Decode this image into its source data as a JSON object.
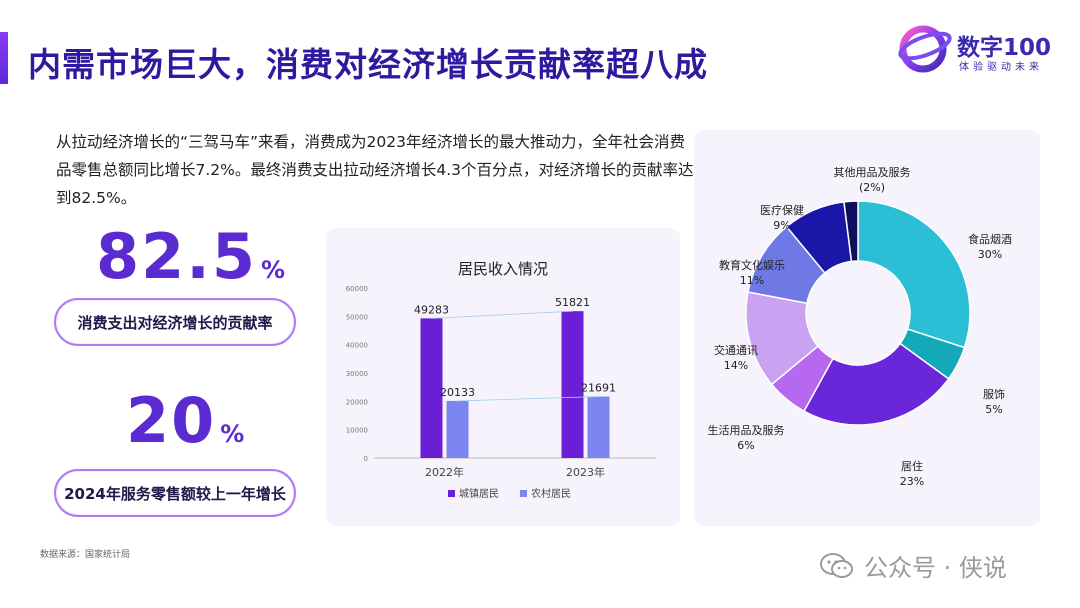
{
  "title": "内需市场巨大，消费对经济增长贡献率超八成",
  "brand": {
    "name": "数字100",
    "slogan": "体验驱动未来",
    "color": "#3a2ab0"
  },
  "intro": "从拉动经济增长的“三驾马车”来看，消费成为2023年经济增长的最大推动力，全年社会消费品零售总额同比增长7.2%。最终消费支出拉动经济增长4.3个百分点，对经济增长的贡献率达到82.5%。",
  "stats": [
    {
      "value": "82.5",
      "unit": "%",
      "label": "消费支出对经济增长的贡献率"
    },
    {
      "value": "20",
      "unit": "%",
      "label": "2024年服务零售额较上一年增长"
    }
  ],
  "source": "数据来源：国家统计局",
  "watermark": {
    "text": "公众号 · 侠说",
    "icon": "wechat-icon"
  },
  "chart_data": [
    {
      "type": "bar",
      "title": "居民收入情况",
      "categories": [
        "2022年",
        "2023年"
      ],
      "series": [
        {
          "name": "城镇居民",
          "values": [
            49283,
            51821
          ],
          "color": "#6a1fd6"
        },
        {
          "name": "农村居民",
          "values": [
            20133,
            21691
          ],
          "color": "#7b86f0"
        }
      ],
      "ylim": [
        0,
        60000
      ],
      "yticks": [
        "0",
        "10000",
        "20000",
        "30000",
        "40000",
        "50000",
        "60000"
      ],
      "legend": "bottom",
      "grid": false
    },
    {
      "type": "pie",
      "donut": true,
      "slices": [
        {
          "label": "食品烟酒",
          "value": 30,
          "text": "30%",
          "color": "#2bbfd6"
        },
        {
          "label": "服饰",
          "value": 5,
          "text": "5%",
          "color": "#14a8b8"
        },
        {
          "label": "居住",
          "value": 23,
          "text": "23%",
          "color": "#6a26d9"
        },
        {
          "label": "生活用品及服务",
          "value": 6,
          "text": "6%",
          "color": "#b768f0"
        },
        {
          "label": "交通通讯",
          "value": 14,
          "text": "14%",
          "color": "#c9a2f2"
        },
        {
          "label": "教育文化娱乐",
          "value": 11,
          "text": "11%",
          "color": "#6e79e6"
        },
        {
          "label": "医疗保健",
          "value": 9,
          "text": "9%",
          "color": "#1a16a8"
        },
        {
          "label": "其他用品及服务",
          "value": 2,
          "text": "(2%)",
          "color": "#0f0f5e"
        }
      ]
    }
  ]
}
